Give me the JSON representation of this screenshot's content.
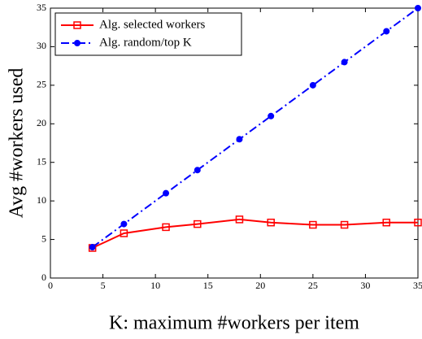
{
  "chart_data": {
    "type": "line",
    "xlabel": "K: maximum #workers per item",
    "ylabel": "Avg #workers used",
    "x": [
      4,
      7,
      11,
      14,
      18,
      21,
      25,
      28,
      32,
      35
    ],
    "series": [
      {
        "name": "Alg. selected workers",
        "color": "#ff0000",
        "linestyle": "solid",
        "marker": "square",
        "values": [
          3.9,
          5.8,
          6.6,
          7.0,
          7.6,
          7.2,
          6.9,
          6.9,
          7.2,
          7.2
        ]
      },
      {
        "name": "Alg. random/top K",
        "color": "#0000ff",
        "linestyle": "dashdot",
        "marker": "circle",
        "values": [
          4,
          7,
          11,
          14,
          18,
          21,
          25,
          28,
          32,
          35
        ]
      }
    ],
    "xlim": [
      0,
      35
    ],
    "xticks": [
      0,
      5,
      10,
      15,
      20,
      25,
      30,
      35
    ],
    "ylim": [
      0,
      35
    ],
    "yticks": [
      0,
      5,
      10,
      15,
      20,
      25,
      30,
      35
    ],
    "grid": false,
    "legend": "upper left"
  }
}
